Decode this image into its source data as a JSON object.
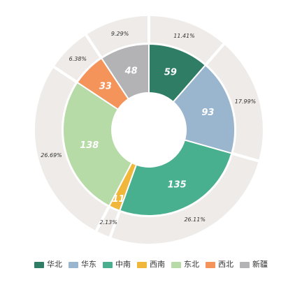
{
  "chart_data": {
    "type": "pie",
    "variant": "nested-donut",
    "categories": [
      "华北",
      "华东",
      "中南",
      "西南",
      "东北",
      "西北",
      "新疆"
    ],
    "inner_values": [
      59,
      93,
      135,
      11,
      138,
      33,
      48
    ],
    "outer_percent_labels": [
      "11.41%",
      "17.99%",
      "26.11%",
      "2.13%",
      "26.69%",
      "6.38%",
      "9.29%"
    ],
    "colors": [
      "#2f7d65",
      "#9ab6cf",
      "#49b08f",
      "#f0b73a",
      "#b6dba6",
      "#f4935a",
      "#b3b3b6"
    ],
    "outer_ring_color": "#eeebe8",
    "legend_position": "bottom"
  }
}
